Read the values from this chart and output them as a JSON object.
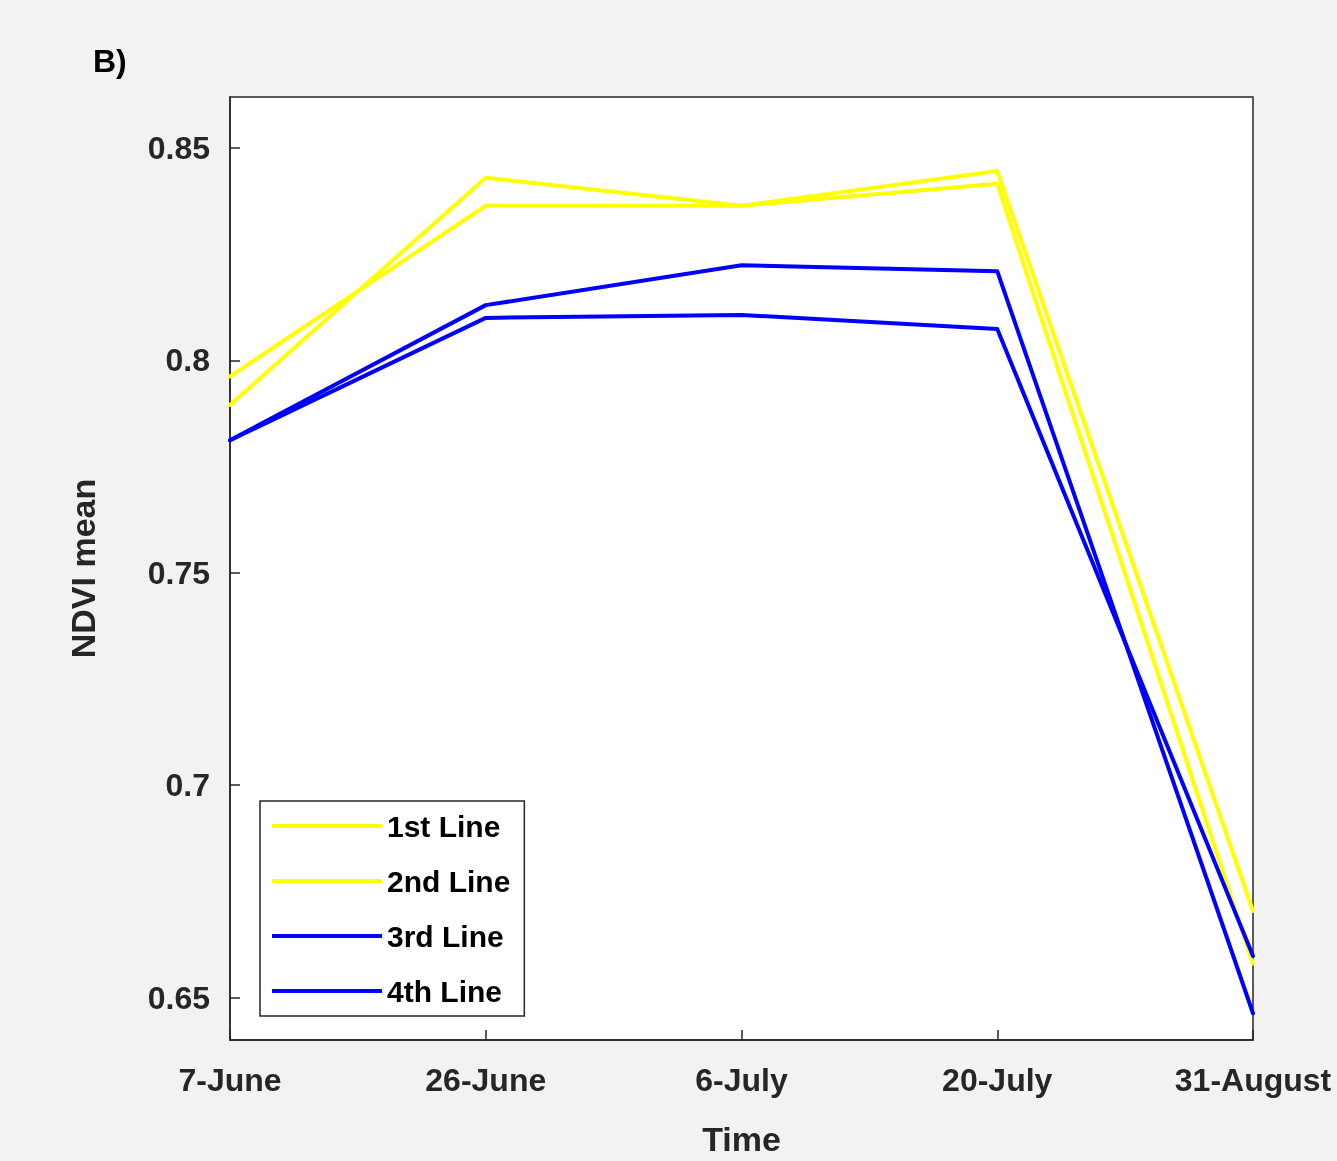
{
  "chart_data": {
    "type": "line",
    "title": "B)",
    "xlabel": "Time",
    "ylabel": "NDVI mean",
    "categories": [
      "7-June",
      "26-June",
      "6-July",
      "20-July",
      "31-August"
    ],
    "series": [
      {
        "name": "1st Line",
        "color": "#ffff00",
        "values": [
          0.7962,
          0.8364,
          0.8364,
          0.8416,
          0.658
        ]
      },
      {
        "name": "2nd Line",
        "color": "#ffff00",
        "values": [
          0.7895,
          0.843,
          0.8364,
          0.8446,
          0.6704
        ]
      },
      {
        "name": "3rd Line",
        "color": "#0000ff",
        "values": [
          0.7812,
          0.813,
          0.8224,
          0.821,
          0.6463
        ]
      },
      {
        "name": "4th Line",
        "color": "#0000ff",
        "values": [
          0.7812,
          0.81,
          0.8107,
          0.8074,
          0.6598
        ]
      }
    ],
    "ylim": [
      0.64,
      0.862
    ],
    "yticks": [
      0.65,
      0.7,
      0.75,
      0.8,
      0.85
    ],
    "grid": false,
    "legend": "bottom left",
    "marker": "none",
    "line_style": "solid"
  }
}
